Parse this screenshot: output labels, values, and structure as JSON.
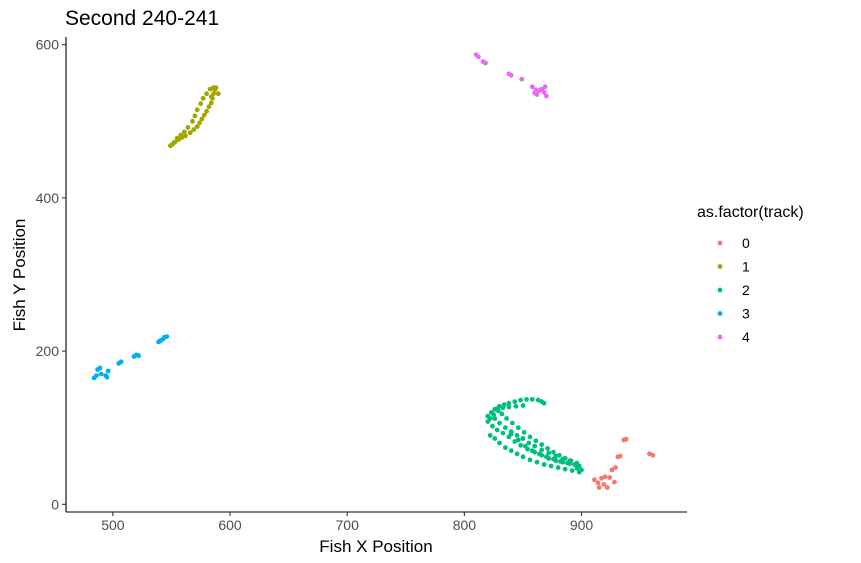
{
  "chart_data": {
    "type": "scatter",
    "title": "Second 240-241",
    "xlabel": "Fish X Position",
    "ylabel": "Fish Y Position",
    "xlim": [
      460,
      990
    ],
    "ylim": [
      -10,
      610
    ],
    "x_ticks": [
      500,
      600,
      700,
      800,
      900
    ],
    "y_ticks": [
      0,
      200,
      400,
      600
    ],
    "grid": false,
    "legend": {
      "title": "as.factor(track)",
      "placement": "right"
    },
    "series": [
      {
        "name": "0",
        "color": "#F8766D",
        "points": [
          [
            911,
            32
          ],
          [
            914,
            28
          ],
          [
            915,
            22
          ],
          [
            917,
            34
          ],
          [
            919,
            26
          ],
          [
            920,
            36
          ],
          [
            922,
            22
          ],
          [
            924,
            35
          ],
          [
            926,
            45
          ],
          [
            928,
            29
          ],
          [
            929,
            48
          ],
          [
            931,
            62
          ],
          [
            933,
            63
          ],
          [
            936,
            84
          ],
          [
            938,
            85
          ],
          [
            958,
            66
          ],
          [
            961,
            64
          ]
        ]
      },
      {
        "name": "1",
        "color": "#A3A500",
        "points": [
          [
            549,
            468
          ],
          [
            551,
            470
          ],
          [
            553,
            473
          ],
          [
            556,
            476
          ],
          [
            559,
            479
          ],
          [
            562,
            481
          ],
          [
            566,
            485
          ],
          [
            569,
            489
          ],
          [
            572,
            493
          ],
          [
            574,
            498
          ],
          [
            576,
            503
          ],
          [
            578,
            508
          ],
          [
            580,
            513
          ],
          [
            582,
            519
          ],
          [
            584,
            524
          ],
          [
            585,
            530
          ],
          [
            586,
            536
          ],
          [
            587,
            541
          ],
          [
            588,
            544
          ],
          [
            590,
            536
          ],
          [
            584,
            532
          ],
          [
            580,
            536
          ],
          [
            577,
            530
          ],
          [
            575,
            523
          ],
          [
            572,
            515
          ],
          [
            570,
            507
          ],
          [
            568,
            500
          ],
          [
            564,
            492
          ],
          [
            561,
            486
          ],
          [
            558,
            482
          ],
          [
            555,
            478
          ],
          [
            552,
            472
          ],
          [
            583,
            542
          ],
          [
            586,
            544
          ]
        ]
      },
      {
        "name": "2",
        "color": "#00BF7D",
        "points": [
          [
            822,
            90
          ],
          [
            826,
            86
          ],
          [
            830,
            80
          ],
          [
            835,
            74
          ],
          [
            840,
            70
          ],
          [
            845,
            66
          ],
          [
            850,
            62
          ],
          [
            856,
            58
          ],
          [
            862,
            55
          ],
          [
            868,
            52
          ],
          [
            874,
            50
          ],
          [
            880,
            48
          ],
          [
            886,
            46
          ],
          [
            892,
            44
          ],
          [
            898,
            42
          ],
          [
            820,
            115
          ],
          [
            823,
            120
          ],
          [
            826,
            124
          ],
          [
            830,
            128
          ],
          [
            834,
            130
          ],
          [
            838,
            132
          ],
          [
            843,
            134
          ],
          [
            848,
            136
          ],
          [
            853,
            137
          ],
          [
            858,
            137
          ],
          [
            863,
            136
          ],
          [
            866,
            134
          ],
          [
            868,
            132
          ],
          [
            826,
            112
          ],
          [
            830,
            106
          ],
          [
            835,
            100
          ],
          [
            840,
            92
          ],
          [
            846,
            84
          ],
          [
            852,
            76
          ],
          [
            858,
            70
          ],
          [
            864,
            66
          ],
          [
            870,
            62
          ],
          [
            876,
            59
          ],
          [
            882,
            56
          ],
          [
            888,
            54
          ],
          [
            894,
            52
          ],
          [
            898,
            50
          ],
          [
            824,
            102
          ],
          [
            828,
            97
          ],
          [
            833,
            93
          ],
          [
            838,
            88
          ],
          [
            843,
            82
          ],
          [
            848,
            77
          ],
          [
            854,
            72
          ],
          [
            860,
            68
          ],
          [
            866,
            64
          ],
          [
            872,
            60
          ],
          [
            878,
            57
          ],
          [
            884,
            55
          ],
          [
            890,
            53
          ],
          [
            896,
            51
          ],
          [
            832,
            118
          ],
          [
            836,
            112
          ],
          [
            841,
            106
          ],
          [
            846,
            100
          ],
          [
            851,
            94
          ],
          [
            856,
            88
          ],
          [
            861,
            83
          ],
          [
            866,
            78
          ],
          [
            871,
            73
          ],
          [
            876,
            68
          ],
          [
            881,
            64
          ],
          [
            886,
            60
          ],
          [
            891,
            57
          ],
          [
            896,
            54
          ],
          [
            828,
            125
          ],
          [
            833,
            126
          ],
          [
            838,
            127
          ],
          [
            844,
            128
          ],
          [
            850,
            129
          ],
          [
            820,
            108
          ],
          [
            822,
            112
          ],
          [
            825,
            117
          ],
          [
            829,
            122
          ],
          [
            840,
            95
          ],
          [
            845,
            90
          ],
          [
            850,
            86
          ],
          [
            855,
            80
          ],
          [
            860,
            76
          ],
          [
            866,
            71
          ],
          [
            872,
            67
          ],
          [
            878,
            63
          ],
          [
            884,
            59
          ],
          [
            890,
            57
          ],
          [
            896,
            47
          ],
          [
            900,
            45
          ]
        ]
      },
      {
        "name": "3",
        "color": "#00B0F6",
        "points": [
          [
            484,
            165
          ],
          [
            486,
            168
          ],
          [
            487,
            176
          ],
          [
            489,
            178
          ],
          [
            490,
            170
          ],
          [
            494,
            168
          ],
          [
            495,
            166
          ],
          [
            496,
            174
          ],
          [
            505,
            184
          ],
          [
            507,
            186
          ],
          [
            518,
            193
          ],
          [
            520,
            195
          ],
          [
            522,
            194
          ],
          [
            539,
            212
          ],
          [
            541,
            214
          ],
          [
            543,
            216
          ],
          [
            544,
            218
          ],
          [
            546,
            219
          ],
          [
            540,
            213
          ]
        ]
      },
      {
        "name": "4",
        "color": "#E76BF3",
        "points": [
          [
            810,
            587
          ],
          [
            812,
            584
          ],
          [
            816,
            578
          ],
          [
            818,
            576
          ],
          [
            838,
            562
          ],
          [
            840,
            560
          ],
          [
            849,
            555
          ],
          [
            858,
            545
          ],
          [
            860,
            537
          ],
          [
            861,
            541
          ],
          [
            862,
            535
          ],
          [
            866,
            542
          ],
          [
            868,
            538
          ],
          [
            869,
            545
          ],
          [
            870,
            533
          ],
          [
            864,
            540
          ]
        ]
      }
    ]
  }
}
